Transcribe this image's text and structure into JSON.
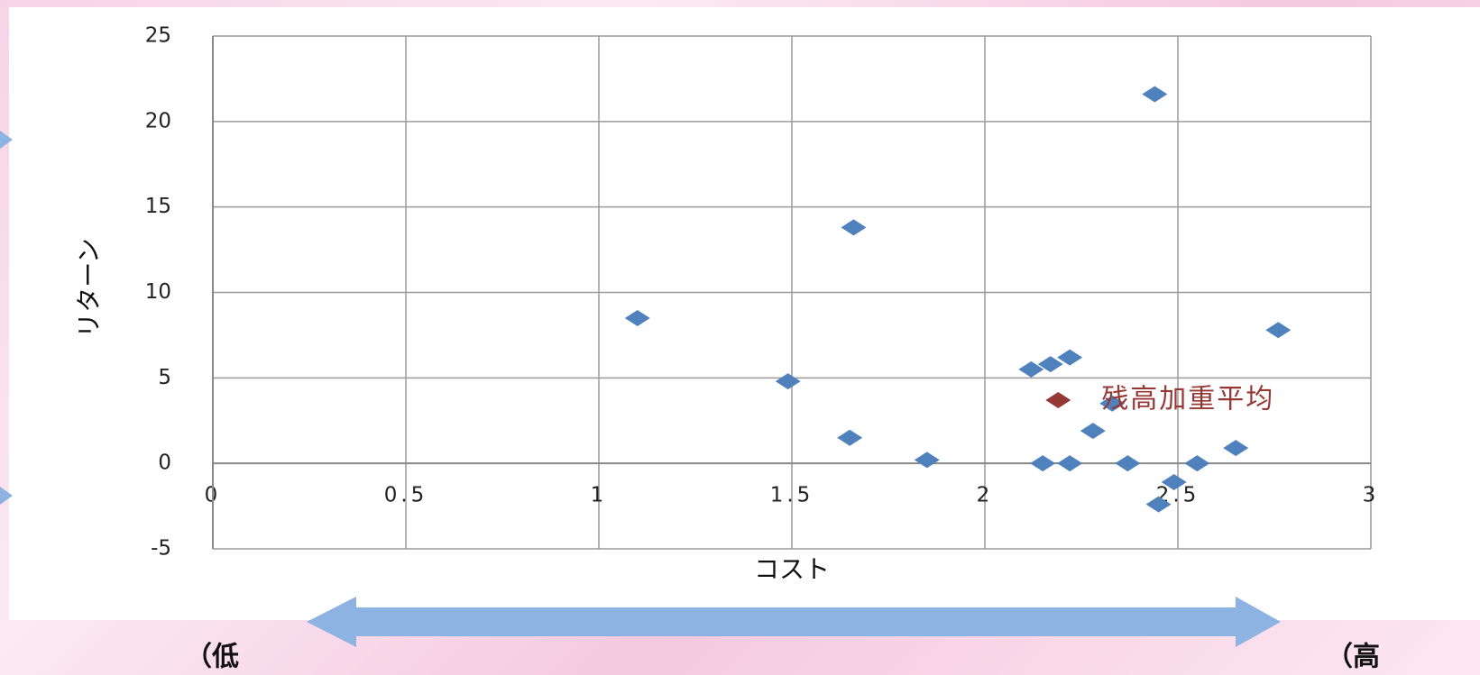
{
  "chart_data": {
    "type": "scatter",
    "x_label": "コスト",
    "y_label": "リターン",
    "xlim": [
      0,
      3
    ],
    "xticks": [
      0,
      0.5,
      1,
      1.5,
      2,
      2.5,
      3
    ],
    "ylim": [
      -5,
      25
    ],
    "yticks": [
      -5,
      0,
      5,
      10,
      15,
      20,
      25
    ],
    "grid": true,
    "series": [
      {
        "color": "#4f81bd",
        "x": [
          1.1,
          1.49,
          1.66,
          1.65,
          1.85,
          2.12,
          2.17,
          2.22,
          2.15,
          2.22,
          2.28,
          2.33,
          2.37,
          2.44,
          2.45,
          2.49,
          2.55,
          2.65,
          2.76
        ],
        "values": [
          8.5,
          4.8,
          13.8,
          1.5,
          0.2,
          5.5,
          5.8,
          6.2,
          0,
          0,
          1.9,
          3.5,
          0,
          21.6,
          -2.4,
          -1.1,
          0,
          0.9,
          7.8
        ]
      },
      {
        "name": "残高加重平均",
        "color": "#953735",
        "x": [
          2.19
        ],
        "values": [
          3.7
        ]
      }
    ]
  },
  "slide": {
    "left_label": "（低",
    "right_label": "（高"
  }
}
